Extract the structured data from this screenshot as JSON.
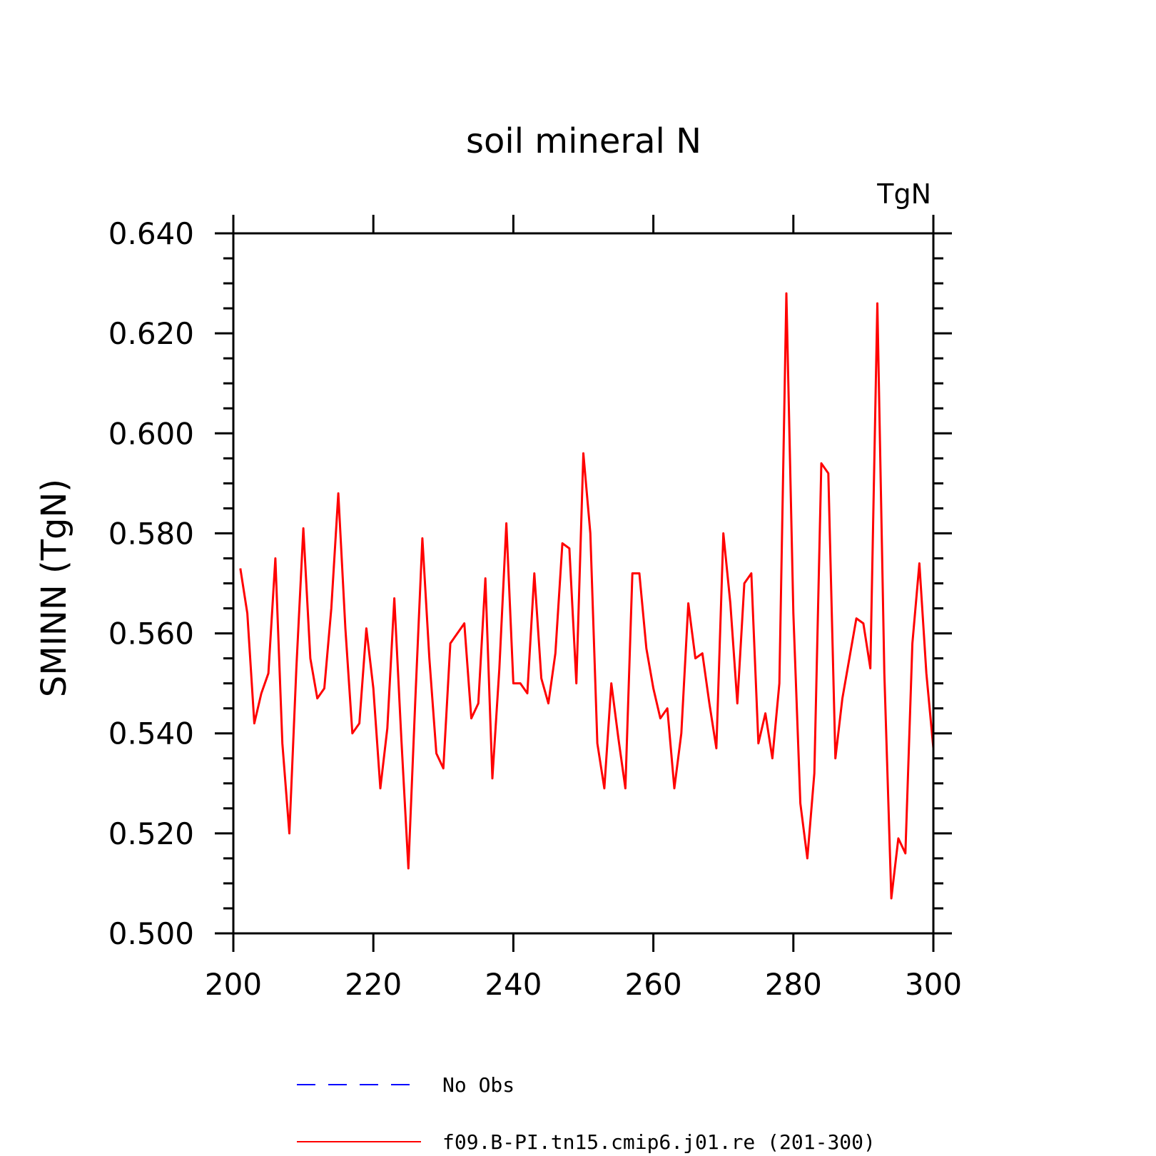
{
  "chart_data": {
    "type": "line",
    "title": "soil mineral N",
    "units_label": "TgN",
    "ylabel": "SMINN  (TgN)",
    "xlabel": "",
    "xlim": [
      200,
      300
    ],
    "ylim": [
      0.5,
      0.64
    ],
    "x_ticks": [
      200,
      220,
      240,
      260,
      280,
      300
    ],
    "y_ticks": [
      0.5,
      0.52,
      0.54,
      0.56,
      0.58,
      0.6,
      0.62,
      0.64
    ],
    "y_tick_labels": [
      "0.500",
      "0.520",
      "0.540",
      "0.560",
      "0.580",
      "0.600",
      "0.620",
      "0.640"
    ],
    "grid": false,
    "legend_position": "bottom",
    "colors": {
      "obs": "#0000ff",
      "model": "#ff0000",
      "axes": "#000000"
    },
    "series": [
      {
        "name": "No Obs",
        "style": "dashed",
        "color": "#0000ff",
        "x": [],
        "values": []
      },
      {
        "name": "f09.B-PI.tn15.cmip6.j01.re (201-300)",
        "style": "solid",
        "color": "#ff0000",
        "x": [
          201,
          202,
          203,
          204,
          205,
          206,
          207,
          208,
          209,
          210,
          211,
          212,
          213,
          214,
          215,
          216,
          217,
          218,
          219,
          220,
          221,
          222,
          223,
          224,
          225,
          226,
          227,
          228,
          229,
          230,
          231,
          232,
          233,
          234,
          235,
          236,
          237,
          238,
          239,
          240,
          241,
          242,
          243,
          244,
          245,
          246,
          247,
          248,
          249,
          250,
          251,
          252,
          253,
          254,
          255,
          256,
          257,
          258,
          259,
          260,
          261,
          262,
          263,
          264,
          265,
          266,
          267,
          268,
          269,
          270,
          271,
          272,
          273,
          274,
          275,
          276,
          277,
          278,
          279,
          280,
          281,
          282,
          283,
          284,
          285,
          286,
          287,
          288,
          289,
          290,
          291,
          292,
          293,
          294,
          295,
          296,
          297,
          298,
          299,
          300
        ],
        "values": [
          0.573,
          0.564,
          0.542,
          0.548,
          0.552,
          0.575,
          0.538,
          0.52,
          0.553,
          0.581,
          0.555,
          0.547,
          0.549,
          0.565,
          0.588,
          0.561,
          0.54,
          0.542,
          0.561,
          0.549,
          0.529,
          0.541,
          0.567,
          0.539,
          0.513,
          0.547,
          0.579,
          0.555,
          0.536,
          0.533,
          0.558,
          0.56,
          0.562,
          0.543,
          0.546,
          0.571,
          0.531,
          0.553,
          0.582,
          0.55,
          0.55,
          0.548,
          0.572,
          0.551,
          0.546,
          0.556,
          0.578,
          0.577,
          0.55,
          0.596,
          0.58,
          0.538,
          0.529,
          0.55,
          0.539,
          0.529,
          0.572,
          0.572,
          0.557,
          0.549,
          0.543,
          0.545,
          0.529,
          0.54,
          0.566,
          0.555,
          0.556,
          0.546,
          0.537,
          0.58,
          0.566,
          0.546,
          0.57,
          0.572,
          0.538,
          0.544,
          0.535,
          0.55,
          0.628,
          0.564,
          0.526,
          0.515,
          0.532,
          0.594,
          0.592,
          0.535,
          0.547,
          0.555,
          0.563,
          0.562,
          0.553,
          0.626,
          0.552,
          0.507,
          0.519,
          0.516,
          0.558,
          0.574,
          0.552,
          0.537
        ]
      }
    ]
  }
}
